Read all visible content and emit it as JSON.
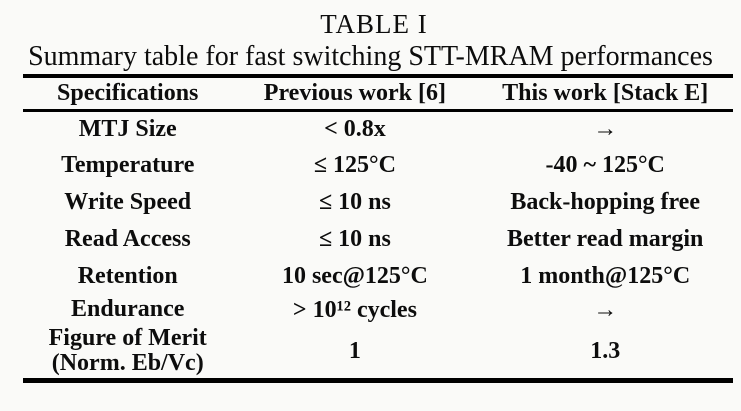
{
  "page": {
    "title": "TABLE I",
    "caption": "Summary table for fast switching STT-MRAM performances"
  },
  "table": {
    "columns": [
      "Specifications",
      "Previous work [6]",
      "This work [Stack E]"
    ],
    "rows": [
      {
        "spec": "MTJ Size",
        "previous": "< 0.8x",
        "this_work": "→"
      },
      {
        "spec": "Temperature",
        "previous": "≤ 125°C",
        "this_work": "-40 ~ 125°C"
      },
      {
        "spec": "Write Speed",
        "previous": "≤ 10 ns",
        "this_work": "Back-hopping free"
      },
      {
        "spec": "Read Access",
        "previous": "≤ 10 ns",
        "this_work": "Better read margin"
      },
      {
        "spec": "Retention",
        "previous": "10 sec@125°C",
        "this_work": "1 month@125°C"
      },
      {
        "spec": "Endurance",
        "previous": "> 10¹² cycles",
        "this_work": "→"
      },
      {
        "spec": "Figure of Merit\n(Norm. Eb/Vc)",
        "previous": "1",
        "this_work": "1.3"
      }
    ],
    "colors": {
      "text": "#0d0d0d",
      "rule": "#000000",
      "background": "#fafaf8"
    }
  }
}
